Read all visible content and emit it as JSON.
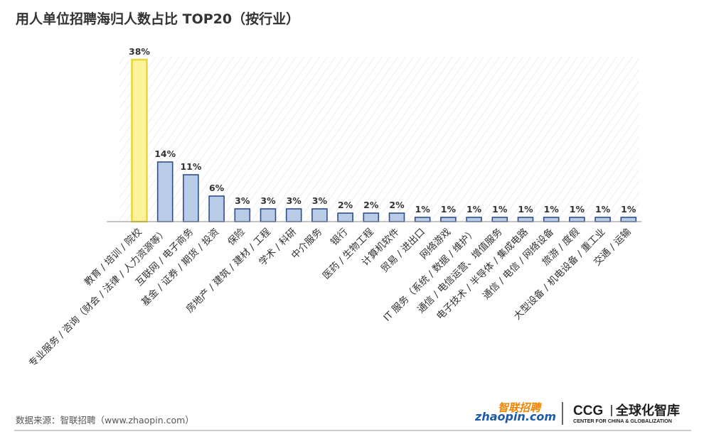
{
  "chart_data": {
    "type": "bar",
    "title": "用人单位招聘海归人数占比 TOP20（按行业）",
    "categories": [
      "教育 / 培训 / 院校",
      "专业服务 / 咨询（财会 / 法律 / 人力资源等）",
      "互联网 / 电子商务",
      "基金 / 证券 / 期货 / 投资",
      "保险",
      "房地产 / 建筑 / 建材 / 工程",
      "学术 / 科研",
      "中介服务",
      "银行",
      "医药 / 生物工程",
      "计算机软件",
      "贸易 / 进出口",
      "网络游戏",
      "IT 服务（系统 / 数据 / 维护）",
      "通信 / 电信运营、增值服务",
      "电子技术 / 半导体 / 集成电路",
      "通信 / 电信 / 网络设备",
      "旅游 / 度假",
      "大型设备 / 机电设备 / 重工业",
      "交通 / 运输"
    ],
    "values": [
      38,
      14,
      11,
      6,
      3,
      3,
      3,
      3,
      2,
      2,
      2,
      1,
      1,
      1,
      1,
      1,
      1,
      1,
      1,
      1
    ],
    "value_labels": [
      "38%",
      "14%",
      "11%",
      "6%",
      "3%",
      "3%",
      "3%",
      "3%",
      "2%",
      "2%",
      "2%",
      "1%",
      "1%",
      "1%",
      "1%",
      "1%",
      "1%",
      "1%",
      "1%",
      "1%"
    ],
    "unit": "%",
    "ylim": [
      0,
      38
    ],
    "grid": false,
    "legend": "none",
    "highlight_index": 0,
    "colors": {
      "bar_fill": "#b8cce8",
      "bar_stroke": "#2e4f8c",
      "highlight_fill": "#fbf39a",
      "highlight_stroke": "#e7d932",
      "hatch": "#d9d9d9",
      "axis": "#8a8a8a"
    }
  },
  "footer": {
    "source": "数据来源：智联招聘（www.zhaopin.com）",
    "logo_zhaopin_cn": "智联招聘",
    "logo_zhaopin_en": "zhaopin.com",
    "logo_ccg_abbr": "CCG",
    "logo_ccg_cn": "全球化智库",
    "logo_ccg_en": "CENTER FOR CHINA & GLOBALIZATION"
  }
}
